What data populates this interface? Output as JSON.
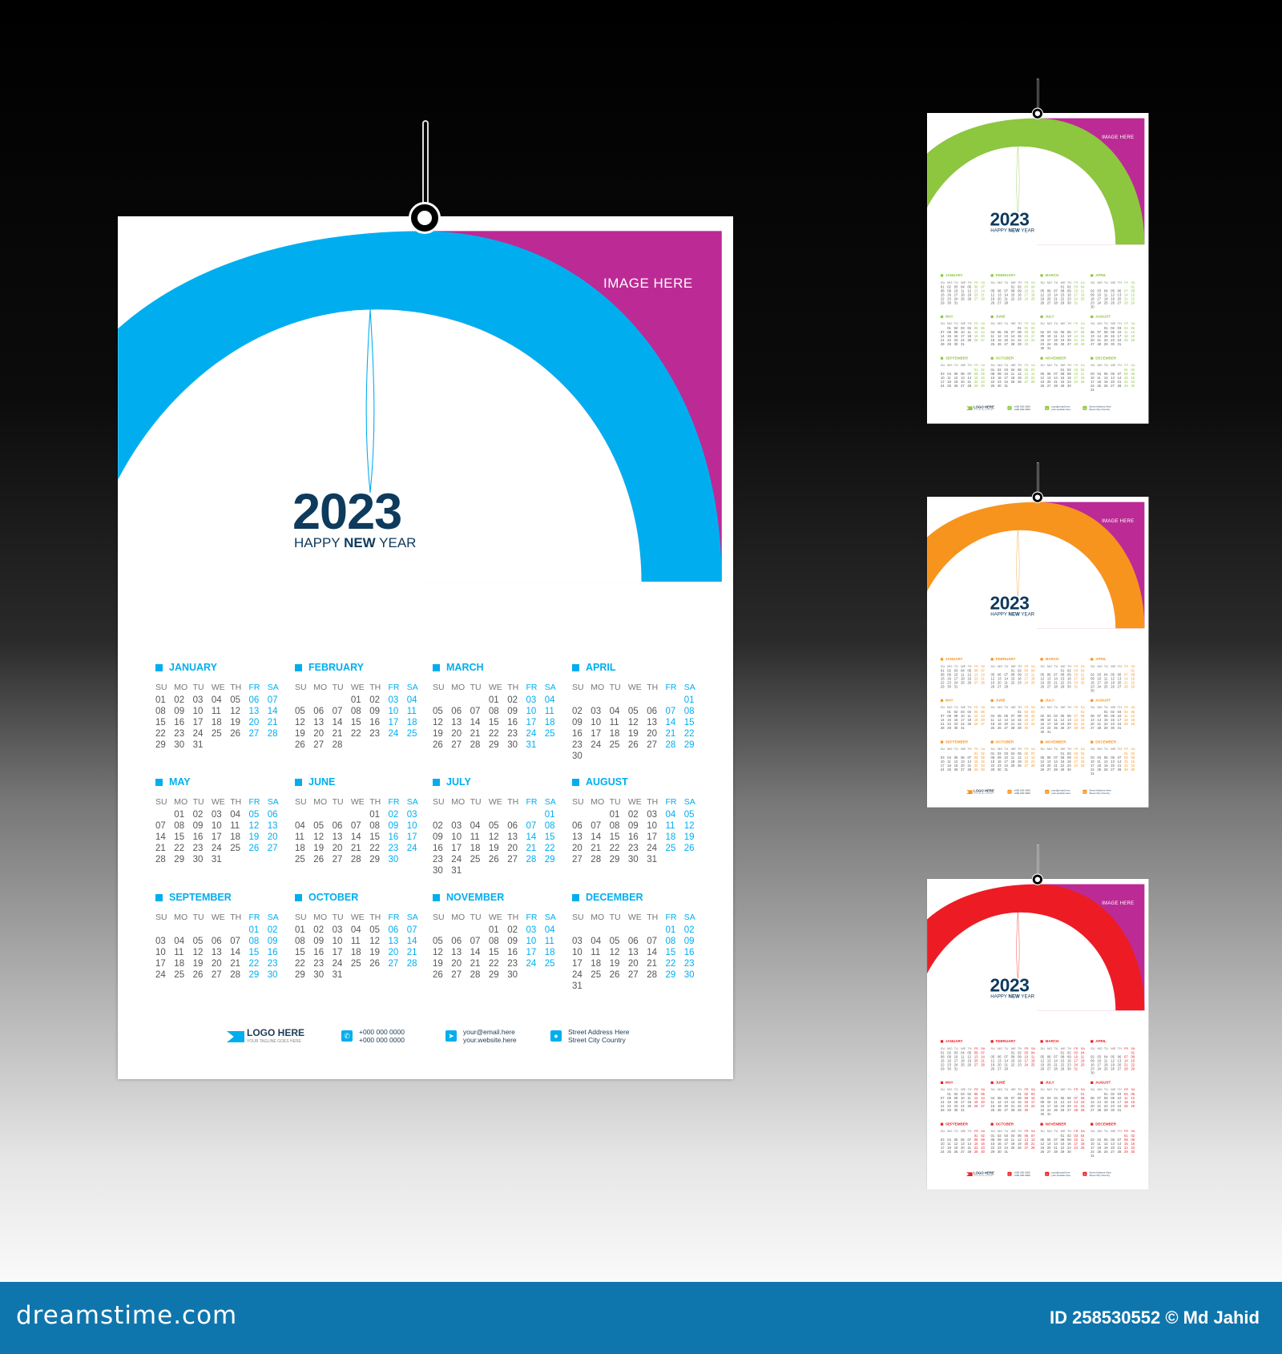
{
  "calendar": {
    "year": "2023",
    "greeting": {
      "pre": "HAPPY ",
      "bold": "NEW",
      "post": " YEAR"
    },
    "image_placeholder": "IMAGE HERE",
    "weekdays": [
      "SU",
      "MO",
      "TU",
      "WE",
      "TH",
      "FR",
      "SA"
    ],
    "weekend_highlight": [
      "FR",
      "SA"
    ],
    "months": [
      {
        "name": "JANUARY",
        "first_weekday": "SU",
        "days": 31
      },
      {
        "name": "FEBRUARY",
        "first_weekday": "WE",
        "days": 28
      },
      {
        "name": "MARCH",
        "first_weekday": "WE",
        "days": 31
      },
      {
        "name": "APRIL",
        "first_weekday": "SA",
        "days": 30
      },
      {
        "name": "MAY",
        "first_weekday": "MO",
        "days": 31
      },
      {
        "name": "JUNE",
        "first_weekday": "TH",
        "days": 30
      },
      {
        "name": "JULY",
        "first_weekday": "SA",
        "days": 31
      },
      {
        "name": "AUGUST",
        "first_weekday": "TU",
        "days": 31
      },
      {
        "name": "SEPTEMBER",
        "first_weekday": "FR",
        "days": 30
      },
      {
        "name": "OCTOBER",
        "first_weekday": "SU",
        "days": 31
      },
      {
        "name": "NOVEMBER",
        "first_weekday": "WE",
        "days": 30
      },
      {
        "name": "DECEMBER",
        "first_weekday": "FR",
        "days": 31
      }
    ],
    "footer": {
      "logo": {
        "title": "LOGO HERE",
        "tagline": "YOUR TAGLINE GOES HERE"
      },
      "phone": [
        "+000 000 0000",
        "+000 000 0000"
      ],
      "web": [
        "your@email.here",
        "your.website.here"
      ],
      "address": [
        "Street Address Here",
        "Street City Country"
      ]
    },
    "colors": {
      "secondary": "#BC2A95",
      "heading": "#0E3A5C"
    }
  },
  "variants": [
    {
      "name": "blue",
      "accent": "#00AEEF"
    },
    {
      "name": "green",
      "accent": "#8DC63F"
    },
    {
      "name": "orange",
      "accent": "#F7941D"
    },
    {
      "name": "red",
      "accent": "#ED1C24"
    }
  ],
  "watermark": {
    "brand": "dreamstime.com",
    "credit": "ID 258530552 © Md Jahid",
    "bar_color": "#0F76AD"
  }
}
